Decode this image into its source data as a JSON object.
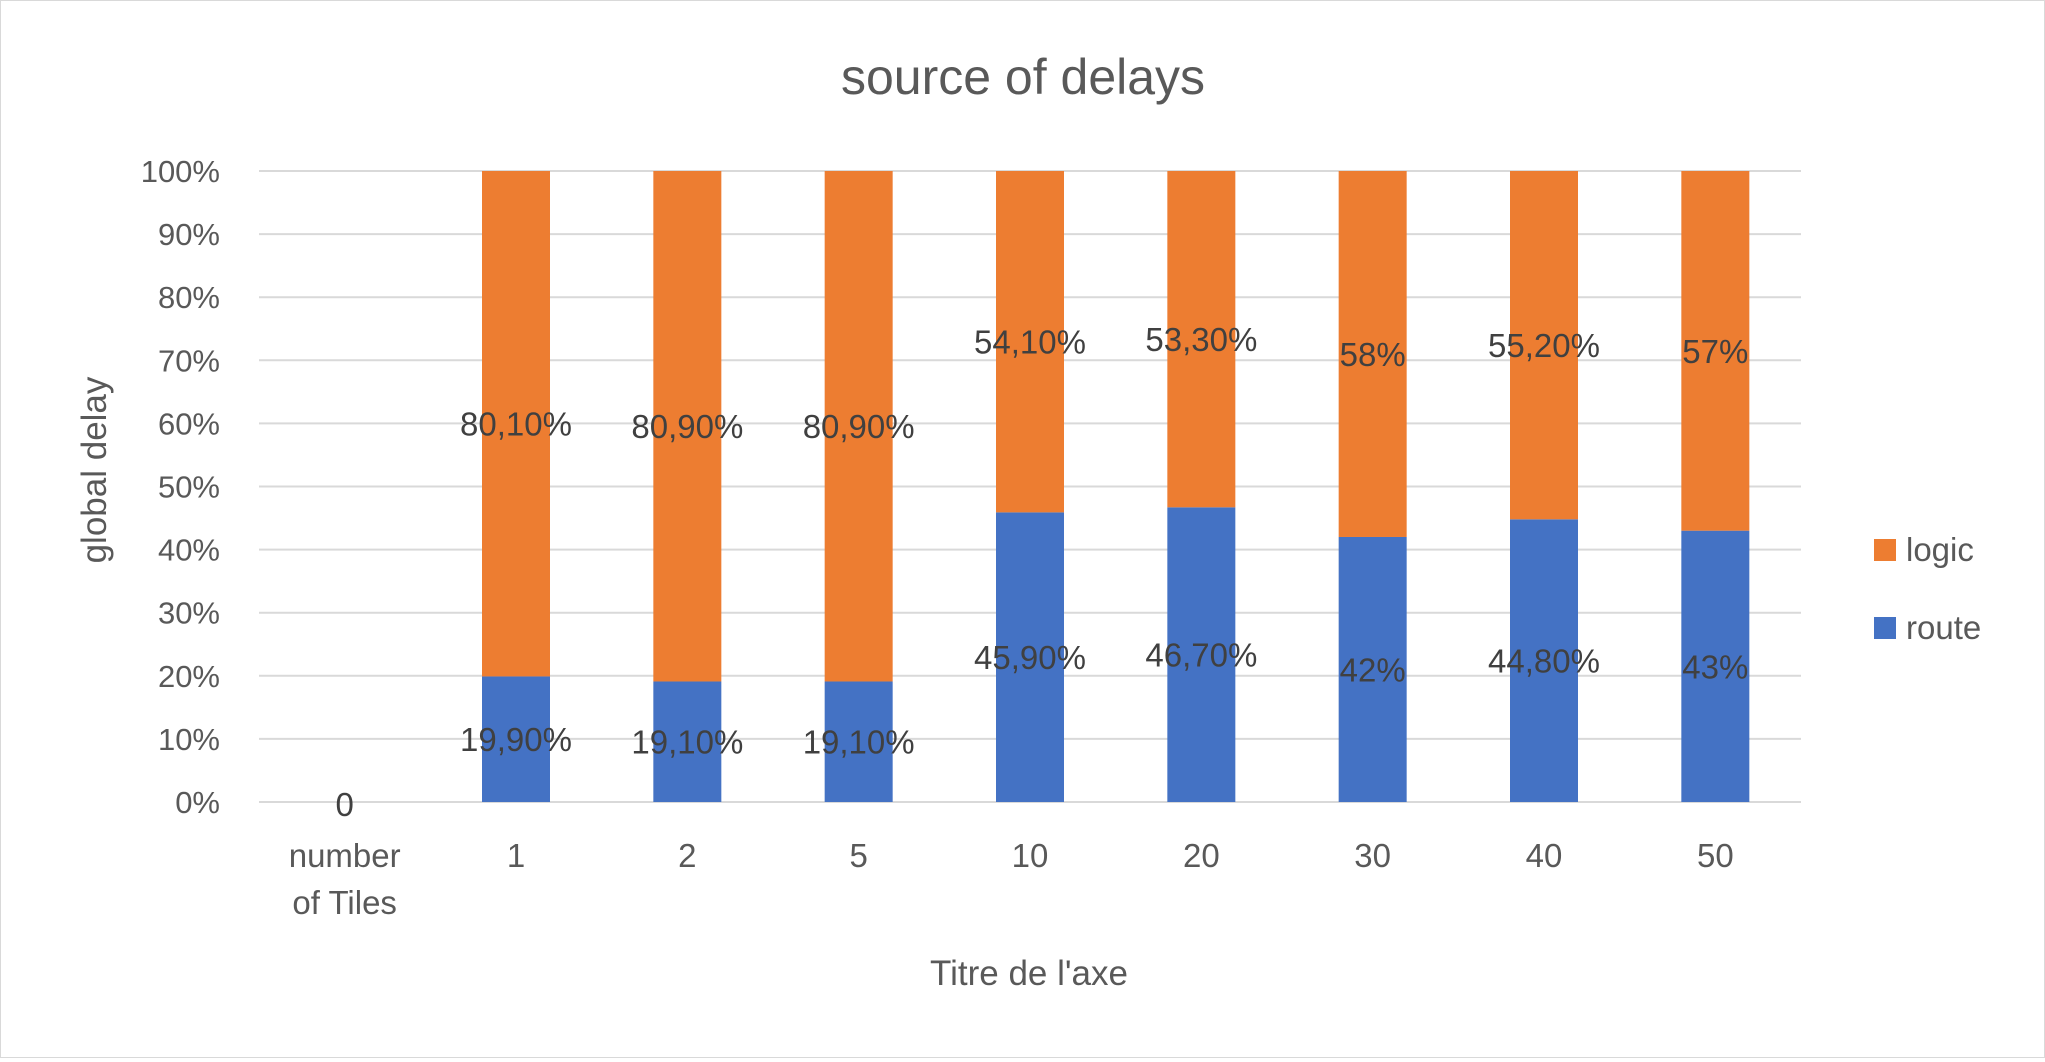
{
  "chart_data": {
    "type": "bar",
    "stacked": true,
    "percent_stacked": true,
    "title": "source of delays",
    "xlabel": "Titre de l'axe",
    "ylabel": "global delay",
    "categories": [
      "number of Tiles",
      "1",
      "2",
      "5",
      "10",
      "20",
      "30",
      "40",
      "50"
    ],
    "series": [
      {
        "name": "route",
        "color": "#4472C4",
        "values": [
          0,
          19.9,
          19.1,
          19.1,
          45.9,
          46.7,
          42,
          44.8,
          43
        ],
        "labels": [
          "0",
          "19,90%",
          "19,10%",
          "19,10%",
          "45,90%",
          "46,70%",
          "42%",
          "44,80%",
          "43%"
        ]
      },
      {
        "name": "logic",
        "color": "#ED7D31",
        "values": [
          0,
          80.1,
          80.9,
          80.9,
          54.1,
          53.3,
          58,
          55.2,
          57
        ],
        "labels": [
          "",
          "80,10%",
          "80,90%",
          "80,90%",
          "54,10%",
          "53,30%",
          "58%",
          "55,20%",
          "57%"
        ]
      }
    ],
    "ylim": [
      0,
      100
    ],
    "yticks": [
      "0%",
      "10%",
      "20%",
      "30%",
      "40%",
      "50%",
      "60%",
      "70%",
      "80%",
      "90%",
      "100%"
    ],
    "legend": [
      "logic",
      "route"
    ],
    "legend_position": "right",
    "grid": true
  }
}
